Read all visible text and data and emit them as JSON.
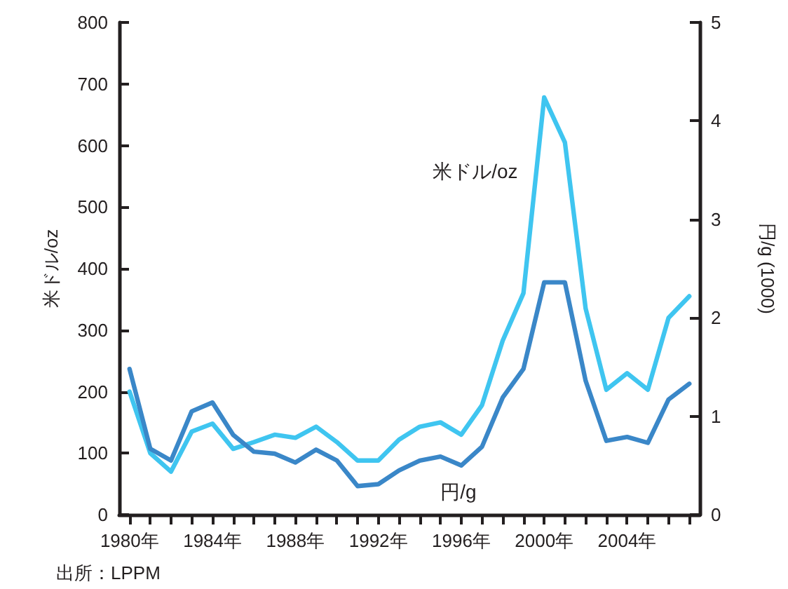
{
  "chart_data": {
    "type": "line",
    "ylabel": "米ドル/oz",
    "y2label": "円/g (1000)",
    "annotations": [
      "出所：LPPM"
    ],
    "categories": [
      "1980年",
      null,
      null,
      null,
      "1984年",
      null,
      null,
      null,
      "1988年",
      null,
      null,
      null,
      "1992年",
      null,
      null,
      null,
      "1996年",
      null,
      null,
      null,
      "2000年",
      null,
      null,
      null,
      "2004年",
      null,
      null,
      null
    ],
    "series": [
      {
        "name": "米ドル/oz",
        "color": "#3fc5f0",
        "values": [
          200,
          100,
          70,
          135,
          148,
          107,
          118,
          130,
          125,
          143,
          118,
          88,
          88,
          122,
          143,
          150,
          130,
          178,
          283,
          360,
          678,
          605,
          335,
          203,
          230,
          203,
          320,
          355
        ]
      },
      {
        "name": "円/g",
        "color": "#3a87c8",
        "axis": "y2",
        "values": [
          1.48,
          0.67,
          0.55,
          1.05,
          1.14,
          0.81,
          0.64,
          0.62,
          0.53,
          0.66,
          0.55,
          0.29,
          0.31,
          0.45,
          0.55,
          0.59,
          0.5,
          0.69,
          1.19,
          1.48,
          2.36,
          2.36,
          1.36,
          0.75,
          0.79,
          0.73,
          1.17,
          1.33
        ]
      }
    ],
    "ylim": [
      0,
      800
    ],
    "yticks": [
      0,
      100,
      200,
      300,
      400,
      500,
      600,
      700,
      800
    ],
    "y2lim": [
      0,
      5
    ],
    "y2ticks": [
      0,
      1,
      2,
      3,
      4,
      5
    ],
    "grid": false,
    "legend": false,
    "marker": "none",
    "line_style": "solid"
  }
}
